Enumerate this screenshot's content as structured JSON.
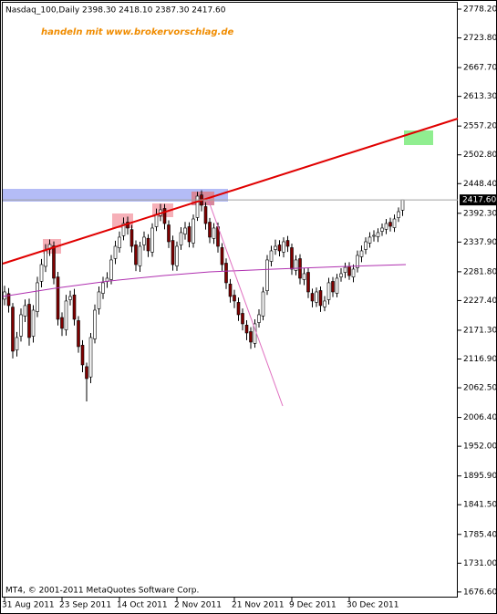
{
  "chart_data": {
    "type": "candlestick",
    "header": "Nasdaq_100,Daily  2398.30 2418.10 2387.30 2417.60",
    "watermark": "handeln mit www.brokervorschlag.de",
    "copyright": "MT4, © 2001-2011 MetaQuotes Software Corp.",
    "last_price": {
      "value": 2417.6,
      "label": "2417.60"
    },
    "categories": [
      "31 Aug 2011",
      null,
      null,
      null,
      null,
      null,
      null,
      null,
      null,
      null,
      null,
      null,
      null,
      null,
      "23 Sep 2011",
      null,
      null,
      null,
      null,
      null,
      null,
      null,
      null,
      null,
      null,
      null,
      null,
      null,
      "14 Oct 2011",
      null,
      null,
      null,
      null,
      null,
      null,
      null,
      null,
      null,
      null,
      null,
      null,
      null,
      "2 Nov 2011",
      null,
      null,
      null,
      null,
      null,
      null,
      null,
      null,
      null,
      null,
      null,
      null,
      null,
      "21 Nov 2011",
      null,
      null,
      null,
      null,
      null,
      null,
      null,
      null,
      null,
      null,
      null,
      null,
      null,
      "9 Dec 2011",
      null,
      null,
      null,
      null,
      null,
      null,
      null,
      null,
      null,
      null,
      null,
      null,
      null,
      "30 Dec 2011",
      null,
      null,
      null,
      null,
      null,
      null,
      null,
      null,
      null,
      null,
      null,
      null,
      null
    ],
    "open": [
      2230.0,
      2240.5,
      2215.0,
      2134.0,
      2160.2,
      2198.0,
      2220.4,
      2160.0,
      2206.5,
      2263.8,
      2292.0,
      2324.0,
      2330.6,
      2272.0,
      2195.3,
      2172.0,
      2229.0,
      2238.0,
      2189.5,
      2143.0,
      2102.5,
      2083.0,
      2155.0,
      2212.0,
      2241.0,
      2263.5,
      2267.0,
      2306.8,
      2327.0,
      2350.0,
      2375.6,
      2361.5,
      2332.7,
      2293.0,
      2332.5,
      2345.0,
      2319.0,
      2367.0,
      2388.0,
      2401.5,
      2370.4,
      2341.0,
      2292.8,
      2332.4,
      2353.0,
      2367.0,
      2336.0,
      2384.3,
      2427.0,
      2405.0,
      2375.5,
      2344.8,
      2367.0,
      2327.5,
      2298.0,
      2258.6,
      2237.5,
      2224.0,
      2203.2,
      2181.0,
      2168.7,
      2146.5,
      2185.9,
      2198.2,
      2246.0,
      2301.5,
      2323.8,
      2332.5,
      2319.0,
      2341.0,
      2327.4,
      2284.3,
      2306.6,
      2267.0,
      2280.7,
      2241.0,
      2224.0,
      2246.3,
      2215.4,
      2229.0,
      2263.6,
      2241.2,
      2272.0,
      2280.6,
      2292.3,
      2271.9,
      2289.4,
      2310.2,
      2323.9,
      2336.0,
      2349.8,
      2348.0,
      2358.3,
      2362.0,
      2375.4,
      2365.2,
      2384.0,
      2398.3
    ],
    "high": [
      2255.3,
      2251.0,
      2222.8,
      2168.0,
      2212.3,
      2229.4,
      2231.0,
      2218.6,
      2272.4,
      2306.0,
      2334.0,
      2342.7,
      2339.1,
      2281.5,
      2205.0,
      2238.2,
      2246.0,
      2249.5,
      2198.0,
      2152.4,
      2110.0,
      2166.1,
      2220.0,
      2254.0,
      2272.3,
      2281.0,
      2313.6,
      2340.5,
      2357.8,
      2384.5,
      2386.0,
      2370.4,
      2341.0,
      2338.6,
      2358.0,
      2352.8,
      2373.5,
      2401.2,
      2410.0,
      2409.8,
      2379.0,
      2350.2,
      2339.0,
      2366.0,
      2376.0,
      2375.4,
      2390.0,
      2433.0,
      2435.6,
      2413.2,
      2383.6,
      2373.8,
      2375.0,
      2336.0,
      2307.0,
      2268.0,
      2247.8,
      2233.0,
      2212.5,
      2190.3,
      2177.0,
      2192.0,
      2211.0,
      2253.0,
      2313.5,
      2331.0,
      2342.5,
      2341.6,
      2347.0,
      2349.5,
      2335.0,
      2313.0,
      2315.0,
      2289.0,
      2288.4,
      2250.0,
      2252.0,
      2254.0,
      2236.0,
      2270.4,
      2272.0,
      2278.0,
      2288.5,
      2299.0,
      2300.0,
      2295.6,
      2322.0,
      2331.4,
      2347.0,
      2356.5,
      2360.2,
      2364.0,
      2373.0,
      2381.6,
      2384.0,
      2390.0,
      2403.4,
      2418.1
    ],
    "low": [
      2218.4,
      2204.6,
      2118.0,
      2121.6,
      2150.0,
      2186.7,
      2142.2,
      2147.9,
      2196.0,
      2252.2,
      2281.4,
      2311.8,
      2258.0,
      2180.3,
      2160.4,
      2161.0,
      2218.3,
      2180.2,
      2128.7,
      2092.0,
      2036.8,
      2071.3,
      2146.5,
      2201.0,
      2230.2,
      2251.4,
      2258.0,
      2296.3,
      2318.0,
      2341.2,
      2352.1,
      2318.5,
      2283.0,
      2281.7,
      2322.0,
      2309.6,
      2310.0,
      2358.8,
      2377.5,
      2362.0,
      2326.6,
      2284.0,
      2283.5,
      2323.1,
      2342.5,
      2328.0,
      2327.2,
      2378.0,
      2396.0,
      2361.5,
      2336.0,
      2334.5,
      2318.0,
      2283.6,
      2249.3,
      2223.4,
      2213.0,
      2189.0,
      2171.0,
      2152.4,
      2136.0,
      2138.2,
      2176.4,
      2190.0,
      2238.0,
      2292.0,
      2314.0,
      2310.8,
      2309.0,
      2319.4,
      2276.0,
      2275.2,
      2258.0,
      2256.5,
      2232.0,
      2214.5,
      2215.3,
      2206.0,
      2207.2,
      2220.0,
      2234.0,
      2233.5,
      2263.0,
      2270.0,
      2266.4,
      2262.0,
      2280.5,
      2300.0,
      2315.0,
      2327.3,
      2339.0,
      2338.0,
      2349.5,
      2353.0,
      2358.0,
      2357.0,
      2376.0,
      2387.3
    ],
    "close": [
      2243.7,
      2217.9,
      2131.7,
      2157.5,
      2200.6,
      2217.9,
      2157.5,
      2209.2,
      2261.0,
      2295.4,
      2321.3,
      2333.4,
      2269.6,
      2192.0,
      2174.8,
      2226.5,
      2235.1,
      2192.0,
      2140.3,
      2105.8,
      2079.9,
      2157.5,
      2209.2,
      2243.7,
      2261.0,
      2269.6,
      2304.1,
      2329.9,
      2347.2,
      2373.0,
      2364.4,
      2329.9,
      2295.4,
      2329.9,
      2347.2,
      2321.3,
      2364.4,
      2390.3,
      2398.9,
      2373.0,
      2338.5,
      2295.4,
      2329.9,
      2355.8,
      2364.4,
      2338.5,
      2381.6,
      2424.7,
      2407.5,
      2373.0,
      2347.2,
      2364.4,
      2329.9,
      2295.4,
      2261.0,
      2235.1,
      2226.5,
      2200.6,
      2183.4,
      2166.1,
      2148.9,
      2183.4,
      2200.6,
      2243.7,
      2304.1,
      2321.3,
      2329.9,
      2321.3,
      2338.5,
      2329.9,
      2286.8,
      2304.1,
      2269.6,
      2278.2,
      2243.7,
      2226.5,
      2243.7,
      2217.9,
      2226.5,
      2261.0,
      2243.7,
      2269.6,
      2278.2,
      2290.1,
      2274.5,
      2286.8,
      2312.7,
      2321.3,
      2338.5,
      2347.2,
      2350.6,
      2355.8,
      2364.4,
      2373.0,
      2367.8,
      2381.6,
      2395.4,
      2417.6
    ],
    "up_color": "#ffffff",
    "down_color": "#800000",
    "ylim": [
      1666,
      2792
    ],
    "yticks": [
      {
        "value": 2778.2,
        "label": "2778.20"
      },
      {
        "value": 2723.8,
        "label": "2723.80"
      },
      {
        "value": 2667.7,
        "label": "2667.70"
      },
      {
        "value": 2613.3,
        "label": "2613.30"
      },
      {
        "value": 2557.2,
        "label": "2557.20"
      },
      {
        "value": 2502.8,
        "label": "2502.80"
      },
      {
        "value": 2448.4,
        "label": "2448.40"
      },
      {
        "value": 2392.3,
        "label": "2392.30"
      },
      {
        "value": 2337.9,
        "label": "2337.90"
      },
      {
        "value": 2281.8,
        "label": "2281.80"
      },
      {
        "value": 2227.4,
        "label": "2227.40"
      },
      {
        "value": 2171.3,
        "label": "2171.30"
      },
      {
        "value": 2116.9,
        "label": "2116.90"
      },
      {
        "value": 2062.5,
        "label": "2062.50"
      },
      {
        "value": 2006.4,
        "label": "2006.40"
      },
      {
        "value": 1952,
        "label": "1952.00"
      },
      {
        "value": 1895.9,
        "label": "1895.90"
      },
      {
        "value": 1841.5,
        "label": "1841.50"
      },
      {
        "value": 1785.4,
        "label": "1785.40"
      },
      {
        "value": 1731,
        "label": "1731.00"
      },
      {
        "value": 1676.6,
        "label": "1676.60"
      }
    ]
  }
}
